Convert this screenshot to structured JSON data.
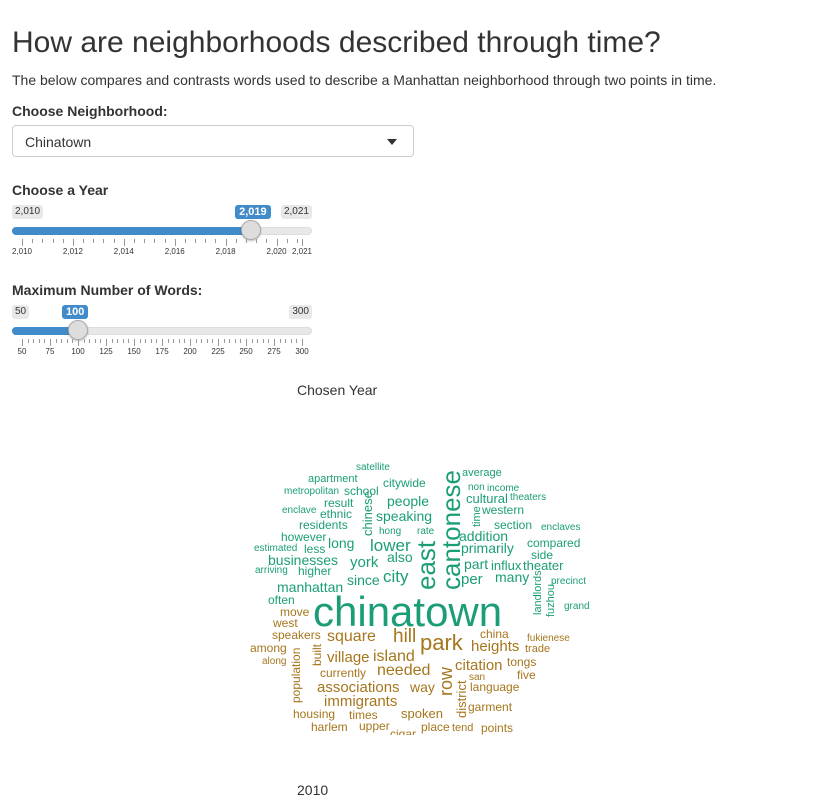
{
  "page": {
    "title": "How are neighborhoods described through time?",
    "subtitle": "The below compares and contrasts words used to describe a Manhattan neighborhood through two points in time."
  },
  "neighborhood": {
    "label": "Choose Neighborhood:",
    "value": "Chinatown"
  },
  "year_slider": {
    "label": "Choose a Year",
    "min_label": "2,010",
    "max_label": "2,021",
    "value_label": "2,019",
    "min": 2010,
    "max": 2021,
    "value": 2019,
    "tick_labels": [
      "2,010",
      "2,012",
      "2,014",
      "2,016",
      "2,018",
      "2,020",
      "2,021"
    ],
    "tick_values": [
      2010,
      2012,
      2014,
      2016,
      2018,
      2020,
      2021
    ]
  },
  "words_slider": {
    "label": "Maximum Number of Words:",
    "min_label": "50",
    "max_label": "300",
    "value_label": "100",
    "min": 50,
    "max": 300,
    "value": 100,
    "tick_labels": [
      "50",
      "75",
      "100",
      "125",
      "150",
      "175",
      "200",
      "225",
      "250",
      "275",
      "300"
    ],
    "tick_values": [
      50,
      75,
      100,
      125,
      150,
      175,
      200,
      225,
      250,
      275,
      300
    ]
  },
  "captions": {
    "top": "Chosen Year",
    "bottom": "2010"
  },
  "colors": {
    "accent": "#428bca",
    "green": "#1b9e77",
    "brown": "#a6761d"
  },
  "wordcloud": [
    {
      "t": "satellite",
      "c": "g"
    },
    {
      "t": "average",
      "c": "g"
    },
    {
      "t": "apartment",
      "c": "g"
    },
    {
      "t": "citywide",
      "c": "g"
    },
    {
      "t": "non",
      "c": "g"
    },
    {
      "t": "income",
      "c": "g"
    },
    {
      "t": "metropolitan",
      "c": "g"
    },
    {
      "t": "school",
      "c": "g"
    },
    {
      "t": "cultural",
      "c": "g"
    },
    {
      "t": "theaters",
      "c": "g"
    },
    {
      "t": "result",
      "c": "g"
    },
    {
      "t": "people",
      "c": "g"
    },
    {
      "t": "enclave",
      "c": "g"
    },
    {
      "t": "ethnic",
      "c": "g"
    },
    {
      "t": "western",
      "c": "g"
    },
    {
      "t": "speaking",
      "c": "g"
    },
    {
      "t": "residents",
      "c": "g"
    },
    {
      "t": "hong",
      "c": "g"
    },
    {
      "t": "rate",
      "c": "g"
    },
    {
      "t": "section",
      "c": "g"
    },
    {
      "t": "enclaves",
      "c": "g"
    },
    {
      "t": "however",
      "c": "g"
    },
    {
      "t": "addition",
      "c": "g"
    },
    {
      "t": "estimated",
      "c": "g"
    },
    {
      "t": "less",
      "c": "g"
    },
    {
      "t": "long",
      "c": "g"
    },
    {
      "t": "lower",
      "c": "g"
    },
    {
      "t": "primarily",
      "c": "g"
    },
    {
      "t": "compared",
      "c": "g"
    },
    {
      "t": "chinese",
      "c": "g"
    },
    {
      "t": "time",
      "c": "g"
    },
    {
      "t": "east",
      "c": "g"
    },
    {
      "t": "cantonese",
      "c": "g"
    },
    {
      "t": "businesses",
      "c": "g"
    },
    {
      "t": "also",
      "c": "g"
    },
    {
      "t": "side",
      "c": "g"
    },
    {
      "t": "arriving",
      "c": "g"
    },
    {
      "t": "higher",
      "c": "g"
    },
    {
      "t": "york",
      "c": "g"
    },
    {
      "t": "part",
      "c": "g"
    },
    {
      "t": "influx",
      "c": "g"
    },
    {
      "t": "theater",
      "c": "g"
    },
    {
      "t": "city",
      "c": "g"
    },
    {
      "t": "since",
      "c": "g"
    },
    {
      "t": "per",
      "c": "g"
    },
    {
      "t": "many",
      "c": "g"
    },
    {
      "t": "precinct",
      "c": "g"
    },
    {
      "t": "manhattan",
      "c": "g"
    },
    {
      "t": "often",
      "c": "g"
    },
    {
      "t": "landlords",
      "c": "g"
    },
    {
      "t": "fuzhou",
      "c": "g"
    },
    {
      "t": "grand",
      "c": "g"
    },
    {
      "t": "chinatown",
      "c": "g"
    },
    {
      "t": "move",
      "c": "b"
    },
    {
      "t": "west",
      "c": "b"
    },
    {
      "t": "speakers",
      "c": "b"
    },
    {
      "t": "square",
      "c": "b"
    },
    {
      "t": "hill",
      "c": "b"
    },
    {
      "t": "park",
      "c": "b"
    },
    {
      "t": "china",
      "c": "b"
    },
    {
      "t": "fukienese",
      "c": "b"
    },
    {
      "t": "among",
      "c": "b"
    },
    {
      "t": "heights",
      "c": "b"
    },
    {
      "t": "trade",
      "c": "b"
    },
    {
      "t": "along",
      "c": "b"
    },
    {
      "t": "population",
      "c": "b"
    },
    {
      "t": "built",
      "c": "b"
    },
    {
      "t": "village",
      "c": "b"
    },
    {
      "t": "island",
      "c": "b"
    },
    {
      "t": "tongs",
      "c": "b"
    },
    {
      "t": "currently",
      "c": "b"
    },
    {
      "t": "needed",
      "c": "b"
    },
    {
      "t": "row",
      "c": "b"
    },
    {
      "t": "citation",
      "c": "b"
    },
    {
      "t": "san",
      "c": "b"
    },
    {
      "t": "five",
      "c": "b"
    },
    {
      "t": "associations",
      "c": "b"
    },
    {
      "t": "way",
      "c": "b"
    },
    {
      "t": "language",
      "c": "b"
    },
    {
      "t": "immigrants",
      "c": "b"
    },
    {
      "t": "district",
      "c": "b"
    },
    {
      "t": "housing",
      "c": "b"
    },
    {
      "t": "times",
      "c": "b"
    },
    {
      "t": "spoken",
      "c": "b"
    },
    {
      "t": "garment",
      "c": "b"
    },
    {
      "t": "harlem",
      "c": "b"
    },
    {
      "t": "upper",
      "c": "b"
    },
    {
      "t": "cigar",
      "c": "b"
    },
    {
      "t": "place",
      "c": "b"
    },
    {
      "t": "tend",
      "c": "b"
    },
    {
      "t": "points",
      "c": "b"
    }
  ]
}
